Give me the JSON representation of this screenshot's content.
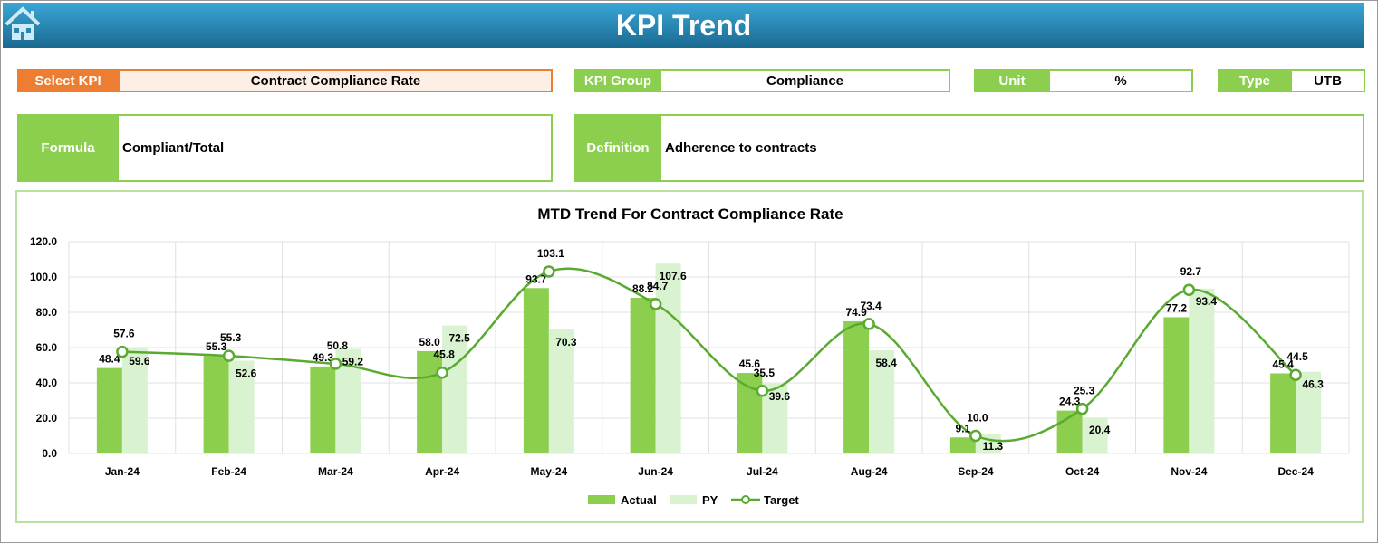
{
  "header": {
    "title": "KPI Trend",
    "home_icon": "home-icon"
  },
  "select_kpi": {
    "label": "Select KPI",
    "value": "Contract Compliance Rate"
  },
  "kpi_group": {
    "label": "KPI Group",
    "value": "Compliance"
  },
  "unit": {
    "label": "Unit",
    "value": "%"
  },
  "type": {
    "label": "Type",
    "value": "UTB"
  },
  "formula": {
    "label": "Formula",
    "value": "Compliant/Total"
  },
  "definition": {
    "label": "Definition",
    "value": "Adherence to contracts"
  },
  "colors": {
    "header": "#1f7aa5",
    "accent_orange": "#ed7d31",
    "green": "#8ccf4f",
    "py": "#d9f2cf",
    "target": "#5aaa32"
  },
  "chart_data": {
    "type": "bar",
    "title": "MTD Trend For Contract Compliance Rate",
    "categories": [
      "Jan-24",
      "Feb-24",
      "Mar-24",
      "Apr-24",
      "May-24",
      "Jun-24",
      "Jul-24",
      "Aug-24",
      "Sep-24",
      "Oct-24",
      "Nov-24",
      "Dec-24"
    ],
    "series": [
      {
        "name": "Actual",
        "type": "bar",
        "values": [
          48.4,
          55.3,
          49.3,
          58.0,
          93.7,
          88.2,
          45.6,
          74.9,
          9.1,
          24.3,
          77.2,
          45.4
        ]
      },
      {
        "name": "PY",
        "type": "bar",
        "values": [
          59.6,
          52.6,
          59.2,
          72.5,
          70.3,
          107.6,
          39.6,
          58.4,
          11.3,
          20.4,
          93.4,
          46.3
        ]
      },
      {
        "name": "Target",
        "type": "line",
        "values": [
          57.6,
          55.3,
          50.8,
          45.8,
          103.1,
          84.7,
          35.5,
          73.4,
          10.0,
          25.3,
          92.7,
          44.5
        ]
      }
    ],
    "yticks": [
      "0.0",
      "20.0",
      "40.0",
      "60.0",
      "80.0",
      "100.0",
      "120.0"
    ],
    "ylim": [
      0,
      120
    ],
    "grid": true,
    "legend": "bottom"
  }
}
